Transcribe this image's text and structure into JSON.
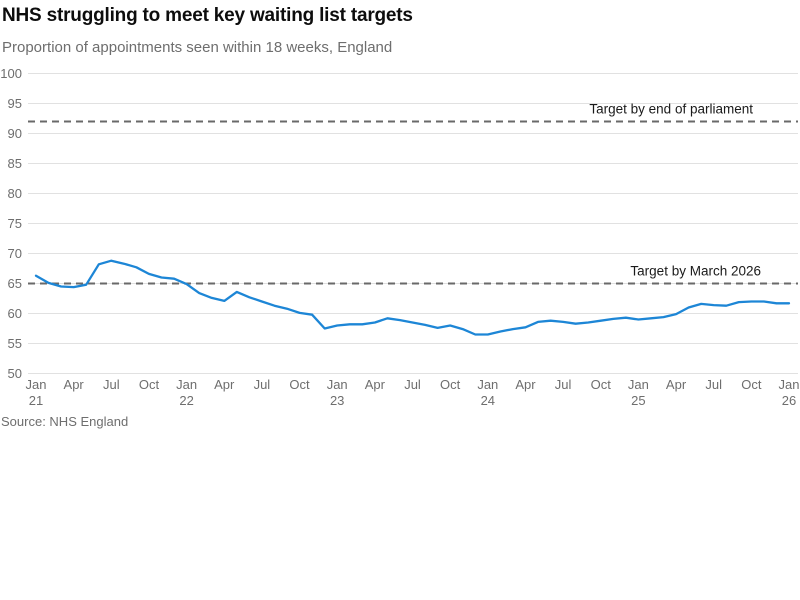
{
  "header": {
    "title": "NHS struggling to meet key waiting list targets",
    "subtitle": "Proportion of appointments seen within 18 weeks, England"
  },
  "source": "Source: NHS England",
  "chart_data": {
    "type": "line",
    "title": "NHS struggling to meet key waiting list targets",
    "subtitle": "Proportion of appointments seen within 18 weeks, England",
    "x_interval": "monthly",
    "x_start": "Jan 2021",
    "x_end": "Jan 2026",
    "values": [
      66.3,
      65.1,
      64.5,
      64.4,
      64.8,
      68.2,
      68.8,
      68.3,
      67.7,
      66.6,
      66.0,
      65.8,
      64.9,
      63.4,
      62.6,
      62.1,
      63.6,
      62.7,
      62.0,
      61.3,
      60.8,
      60.1,
      59.8,
      57.5,
      58.0,
      58.2,
      58.2,
      58.5,
      59.2,
      58.9,
      58.5,
      58.1,
      57.6,
      58.0,
      57.4,
      56.5,
      56.5,
      57.0,
      57.4,
      57.7,
      58.6,
      58.8,
      58.6,
      58.3,
      58.5,
      58.8,
      59.1,
      59.3,
      59.0,
      59.2,
      59.4,
      59.9,
      61.0,
      61.6,
      61.4,
      61.3,
      61.9,
      62.0,
      62.0,
      61.7,
      61.7
    ],
    "ylim": [
      50,
      100
    ],
    "ytick_step": 5,
    "ytick_labels": [
      "50",
      "55",
      "60",
      "65",
      "70",
      "75",
      "80",
      "85",
      "90",
      "95",
      "100"
    ],
    "grid": true,
    "legend": "none",
    "x_ticks": [
      {
        "index": 0,
        "month": "Jan",
        "year": "21"
      },
      {
        "index": 3,
        "month": "Apr"
      },
      {
        "index": 6,
        "month": "Jul"
      },
      {
        "index": 9,
        "month": "Oct"
      },
      {
        "index": 12,
        "month": "Jan",
        "year": "22"
      },
      {
        "index": 15,
        "month": "Apr"
      },
      {
        "index": 18,
        "month": "Jul"
      },
      {
        "index": 21,
        "month": "Oct"
      },
      {
        "index": 24,
        "month": "Jan",
        "year": "23"
      },
      {
        "index": 27,
        "month": "Apr"
      },
      {
        "index": 30,
        "month": "Jul"
      },
      {
        "index": 33,
        "month": "Oct"
      },
      {
        "index": 36,
        "month": "Jan",
        "year": "24"
      },
      {
        "index": 39,
        "month": "Apr"
      },
      {
        "index": 42,
        "month": "Jul"
      },
      {
        "index": 45,
        "month": "Oct"
      },
      {
        "index": 48,
        "month": "Jan",
        "year": "25"
      },
      {
        "index": 51,
        "month": "Apr"
      },
      {
        "index": 54,
        "month": "Jul"
      },
      {
        "index": 57,
        "month": "Oct"
      },
      {
        "index": 60,
        "month": "Jan",
        "year": "26"
      }
    ],
    "targets": [
      {
        "value": 92,
        "label": "Target by end of parliament"
      },
      {
        "value": 65,
        "label": "Target by March 2026"
      }
    ],
    "colors": {
      "line": "#1d86d6",
      "grid": "#e1e1e1",
      "target_line": "#696969",
      "target_label": "#1a1a1a",
      "tick_text": "#6e6e6e"
    }
  }
}
